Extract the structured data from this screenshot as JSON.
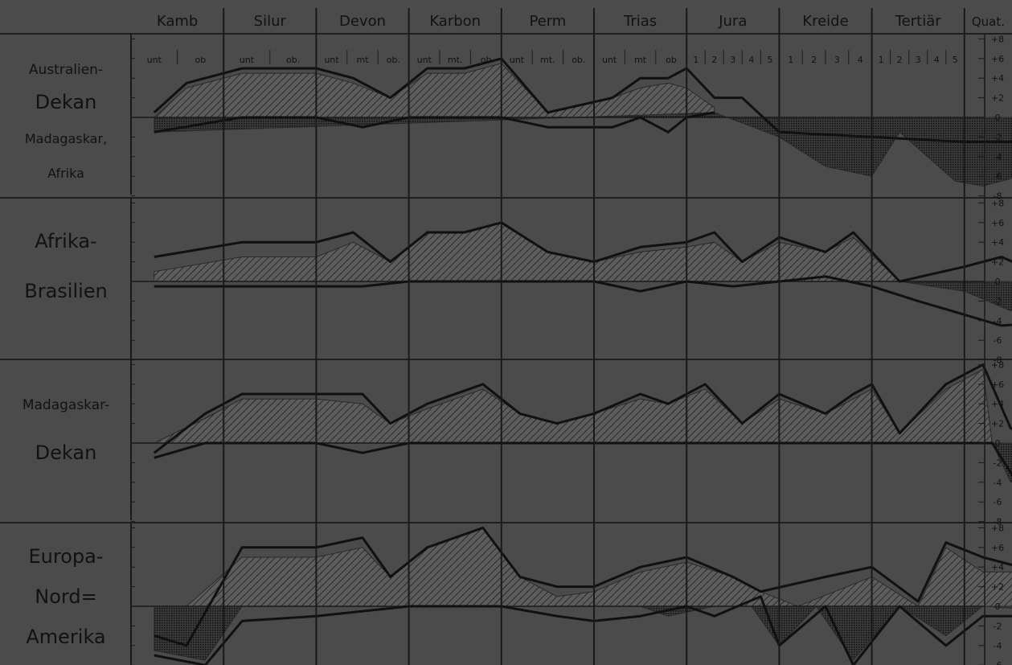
{
  "chart_data": {
    "type": "area",
    "x_axis": {
      "periods": [
        {
          "label": "Kamb",
          "subdivisions": [
            "unt",
            "ob"
          ]
        },
        {
          "label": "Silur",
          "subdivisions": [
            "unt",
            "ob."
          ]
        },
        {
          "label": "Devon",
          "subdivisions": [
            "unt",
            "mt",
            "ob."
          ]
        },
        {
          "label": "Karbon",
          "subdivisions": [
            "unt",
            "mt.",
            "ob"
          ]
        },
        {
          "label": "Perm",
          "subdivisions": [
            "unt",
            "mt.",
            "ob."
          ]
        },
        {
          "label": "Trias",
          "subdivisions": [
            "unt",
            "mt",
            "ob"
          ]
        },
        {
          "label": "Jura",
          "subdivisions": [
            "1",
            "2",
            "3",
            "4",
            "5"
          ]
        },
        {
          "label": "Kreide",
          "subdivisions": [
            "1",
            "2",
            "3",
            "4"
          ]
        },
        {
          "label": "Tertiär",
          "subdivisions": [
            "1",
            "2",
            "3",
            "4",
            "5"
          ]
        },
        {
          "label": "Quat.",
          "subdivisions": []
        }
      ]
    },
    "y_ticks": [
      "+8",
      "+6",
      "+4",
      "+2",
      "0",
      "-2",
      "-4",
      "-6",
      "-8"
    ],
    "ylim": [
      -9,
      9
    ],
    "panels": [
      {
        "labels": [
          "Australien-",
          "Dekan",
          "Madagaskar,",
          "Afrika"
        ],
        "upper_line": [
          [
            0.25,
            0.5
          ],
          [
            0.6,
            3.5
          ],
          [
            1.2,
            5
          ],
          [
            2,
            5
          ],
          [
            2.4,
            4
          ],
          [
            2.8,
            2
          ],
          [
            3.2,
            5
          ],
          [
            3.6,
            5
          ],
          [
            4,
            6
          ],
          [
            4.5,
            0.5
          ],
          [
            5.2,
            2
          ],
          [
            5.5,
            4
          ],
          [
            5.8,
            4
          ],
          [
            6,
            5
          ],
          [
            6.3,
            2
          ],
          [
            6.6,
            2
          ],
          [
            7,
            -1.5
          ],
          [
            8,
            -2
          ],
          [
            9,
            -2.5
          ],
          [
            10,
            -2.5
          ],
          [
            10.6,
            -2.5
          ]
        ],
        "lower_line": [
          [
            0.25,
            -1.5
          ],
          [
            1.2,
            0
          ],
          [
            2,
            0
          ],
          [
            2.5,
            -1
          ],
          [
            3,
            0
          ],
          [
            4,
            0
          ],
          [
            4.5,
            -1
          ],
          [
            5.2,
            -1
          ],
          [
            5.5,
            0
          ],
          [
            5.8,
            -1.5
          ],
          [
            6,
            0
          ],
          [
            6.3,
            0.5
          ]
        ],
        "excess": [
          [
            0.25,
            0
          ],
          [
            0.6,
            3
          ],
          [
            1.2,
            4.5
          ],
          [
            2,
            4.5
          ],
          [
            2.4,
            3.5
          ],
          [
            2.8,
            2
          ],
          [
            3.2,
            4.5
          ],
          [
            3.6,
            4.5
          ],
          [
            4,
            5.5
          ],
          [
            4.5,
            0.5
          ],
          [
            5.2,
            2
          ],
          [
            5.5,
            3
          ],
          [
            5.8,
            3.5
          ],
          [
            6,
            3
          ],
          [
            6.3,
            1
          ]
        ],
        "deficit": [
          [
            0.25,
            -1.5
          ],
          [
            6.3,
            0.5
          ],
          [
            7,
            -2
          ],
          [
            7.5,
            -5
          ],
          [
            8,
            -6
          ],
          [
            8.3,
            -1.5
          ],
          [
            8.9,
            -6.5
          ],
          [
            9.2,
            -7
          ],
          [
            9.6,
            -6
          ],
          [
            10,
            -6
          ],
          [
            10.6,
            -5
          ],
          [
            11,
            -3
          ],
          [
            11.2,
            -3
          ],
          [
            11.6,
            -3
          ]
        ]
      },
      {
        "labels": [
          "Afrika-",
          "Brasilien"
        ],
        "upper_line": [
          [
            0.25,
            2.5
          ],
          [
            1.2,
            4
          ],
          [
            2,
            4
          ],
          [
            2.4,
            5
          ],
          [
            2.8,
            2
          ],
          [
            3.2,
            5
          ],
          [
            3.6,
            5
          ],
          [
            4,
            6
          ],
          [
            4.5,
            3
          ],
          [
            5,
            2
          ],
          [
            5.5,
            3.5
          ],
          [
            6,
            4
          ],
          [
            6.3,
            5
          ],
          [
            6.6,
            2
          ],
          [
            7,
            4.5
          ],
          [
            7.5,
            3
          ],
          [
            7.8,
            5
          ],
          [
            8.3,
            0
          ],
          [
            9,
            1.5
          ],
          [
            9.4,
            2.5
          ],
          [
            10,
            0
          ],
          [
            11,
            0
          ],
          [
            11.6,
            0
          ]
        ],
        "lower_line": [
          [
            0.25,
            -0.5
          ],
          [
            2.5,
            -0.5
          ],
          [
            3,
            0
          ],
          [
            5,
            0
          ],
          [
            5.5,
            -1
          ],
          [
            6,
            0
          ],
          [
            6.5,
            -0.5
          ],
          [
            7.5,
            0.5
          ],
          [
            8,
            -0.5
          ],
          [
            8.5,
            -2
          ],
          [
            9.4,
            -4.5
          ],
          [
            10.2,
            -4
          ],
          [
            10.9,
            -6
          ],
          [
            11.6,
            -3
          ]
        ],
        "excess": [
          [
            0.25,
            1
          ],
          [
            1.2,
            2.5
          ],
          [
            2,
            2.5
          ],
          [
            2.4,
            4
          ],
          [
            2.8,
            2
          ],
          [
            3.2,
            5
          ],
          [
            3.6,
            5
          ],
          [
            4,
            6
          ],
          [
            4.5,
            3
          ],
          [
            5,
            2
          ],
          [
            5.5,
            3
          ],
          [
            6,
            3.5
          ],
          [
            6.3,
            4
          ],
          [
            6.6,
            2
          ],
          [
            7,
            4
          ],
          [
            7.5,
            3
          ],
          [
            7.8,
            4.5
          ],
          [
            8.3,
            0
          ]
        ],
        "deficit": [
          [
            8.3,
            0
          ],
          [
            9,
            -1
          ],
          [
            9.5,
            -3
          ],
          [
            10,
            0
          ],
          [
            10.2,
            -2.5
          ],
          [
            10.9,
            -6
          ],
          [
            11.3,
            -3
          ],
          [
            11.6,
            -3
          ]
        ]
      },
      {
        "labels": [
          "Madagaskar-",
          "Dekan"
        ],
        "upper_line": [
          [
            0.25,
            -1
          ],
          [
            0.8,
            3
          ],
          [
            1.2,
            5
          ],
          [
            2,
            5
          ],
          [
            2.5,
            5
          ],
          [
            2.8,
            2
          ],
          [
            3.2,
            4
          ],
          [
            3.8,
            6
          ],
          [
            4.2,
            3
          ],
          [
            4.6,
            2
          ],
          [
            5,
            3
          ],
          [
            5.5,
            5
          ],
          [
            5.8,
            4
          ],
          [
            6.2,
            6
          ],
          [
            6.6,
            2
          ],
          [
            7,
            5
          ],
          [
            7.5,
            3
          ],
          [
            7.8,
            5
          ],
          [
            8,
            6
          ],
          [
            8.3,
            1
          ],
          [
            8.8,
            6
          ],
          [
            9.2,
            8
          ],
          [
            9.5,
            1.5
          ],
          [
            10,
            1
          ],
          [
            10.2,
            1.5
          ],
          [
            10.6,
            -0.5
          ],
          [
            11.6,
            -2
          ]
        ],
        "lower_line": [
          [
            0.25,
            -1.5
          ],
          [
            0.8,
            0
          ],
          [
            2,
            0
          ],
          [
            2.5,
            -1
          ],
          [
            3,
            0
          ],
          [
            9.3,
            0
          ],
          [
            9.6,
            -4.5
          ],
          [
            10.2,
            -2
          ],
          [
            10.6,
            -3
          ],
          [
            11.6,
            -2.5
          ]
        ],
        "excess": [
          [
            0.25,
            0
          ],
          [
            0.8,
            2.5
          ],
          [
            1.2,
            4.5
          ],
          [
            2,
            4.5
          ],
          [
            2.5,
            4
          ],
          [
            2.8,
            2
          ],
          [
            3.2,
            3.5
          ],
          [
            3.8,
            5.5
          ],
          [
            4.2,
            3
          ],
          [
            4.6,
            2
          ],
          [
            5,
            3
          ],
          [
            5.5,
            4.5
          ],
          [
            5.8,
            4
          ],
          [
            6.2,
            5.5
          ],
          [
            6.6,
            2
          ],
          [
            7,
            4.5
          ],
          [
            7.5,
            3
          ],
          [
            7.8,
            4.5
          ],
          [
            8,
            5.5
          ],
          [
            8.3,
            1
          ],
          [
            8.8,
            5.5
          ],
          [
            9.2,
            7.5
          ],
          [
            9.3,
            0
          ]
        ],
        "deficit": [
          [
            9.3,
            0
          ],
          [
            9.5,
            -4
          ],
          [
            10.2,
            -1.5
          ],
          [
            10.6,
            -3
          ],
          [
            11.6,
            -2
          ]
        ]
      },
      {
        "labels": [
          "Europa-",
          "Nord=",
          "Amerika"
        ],
        "upper_line": [
          [
            0.25,
            -3
          ],
          [
            0.6,
            -4
          ],
          [
            1.2,
            6
          ],
          [
            2,
            6
          ],
          [
            2.5,
            7
          ],
          [
            2.8,
            3
          ],
          [
            3.2,
            6
          ],
          [
            3.8,
            8
          ],
          [
            4.2,
            3
          ],
          [
            4.6,
            2
          ],
          [
            5,
            2
          ],
          [
            5.5,
            4
          ],
          [
            6,
            5
          ],
          [
            6.5,
            3
          ],
          [
            6.8,
            1.5
          ],
          [
            7.5,
            3
          ],
          [
            8,
            4
          ],
          [
            8.5,
            0.5
          ],
          [
            8.8,
            6.5
          ],
          [
            9.2,
            5
          ],
          [
            9.6,
            4
          ],
          [
            10,
            3.5
          ],
          [
            10.6,
            1.5
          ],
          [
            11.6,
            1
          ]
        ],
        "lower_line": [
          [
            0.25,
            -5
          ],
          [
            0.8,
            -6
          ],
          [
            1.2,
            -1.5
          ],
          [
            2,
            -1
          ],
          [
            2.5,
            -0.5
          ],
          [
            3,
            0
          ],
          [
            4,
            0
          ],
          [
            4.6,
            -1
          ],
          [
            5,
            -1.5
          ],
          [
            5.5,
            -1
          ],
          [
            6,
            0
          ],
          [
            6.3,
            -1
          ],
          [
            6.8,
            1
          ],
          [
            7,
            -4
          ],
          [
            7.5,
            0
          ],
          [
            7.8,
            -6
          ],
          [
            8.3,
            0
          ],
          [
            8.8,
            -4
          ],
          [
            9.2,
            -1
          ],
          [
            9.6,
            -1
          ],
          [
            10,
            -1.5
          ],
          [
            10.6,
            -4
          ],
          [
            11,
            -2
          ],
          [
            11.6,
            -2.5
          ]
        ],
        "excess": [
          [
            0.6,
            0
          ],
          [
            1.2,
            5
          ],
          [
            2,
            5
          ],
          [
            2.5,
            6
          ],
          [
            2.8,
            3
          ],
          [
            3.2,
            6
          ],
          [
            3.8,
            8
          ],
          [
            4.2,
            3
          ],
          [
            4.6,
            1
          ],
          [
            5,
            1.5
          ],
          [
            5.5,
            3.5
          ],
          [
            6,
            4.5
          ],
          [
            6.5,
            3
          ],
          [
            6.8,
            1.5
          ],
          [
            7.2,
            0
          ],
          [
            8,
            3
          ],
          [
            8.5,
            0
          ],
          [
            8.8,
            6
          ],
          [
            9.2,
            3.5
          ],
          [
            9.6,
            3.5
          ],
          [
            10,
            2
          ],
          [
            10.6,
            0.5
          ],
          [
            11.6,
            0
          ]
        ],
        "deficit": [
          [
            0.25,
            -4.5
          ],
          [
            0.8,
            -5.5
          ],
          [
            1.2,
            0
          ],
          [
            5.5,
            0
          ],
          [
            5.8,
            -1
          ],
          [
            6.3,
            0
          ],
          [
            6.7,
            0
          ],
          [
            7,
            -4
          ],
          [
            7.4,
            0
          ],
          [
            7.8,
            -5.5
          ],
          [
            8.3,
            0
          ],
          [
            8.8,
            -3
          ],
          [
            9.2,
            0
          ],
          [
            11.6,
            -1.5
          ]
        ]
      }
    ]
  }
}
